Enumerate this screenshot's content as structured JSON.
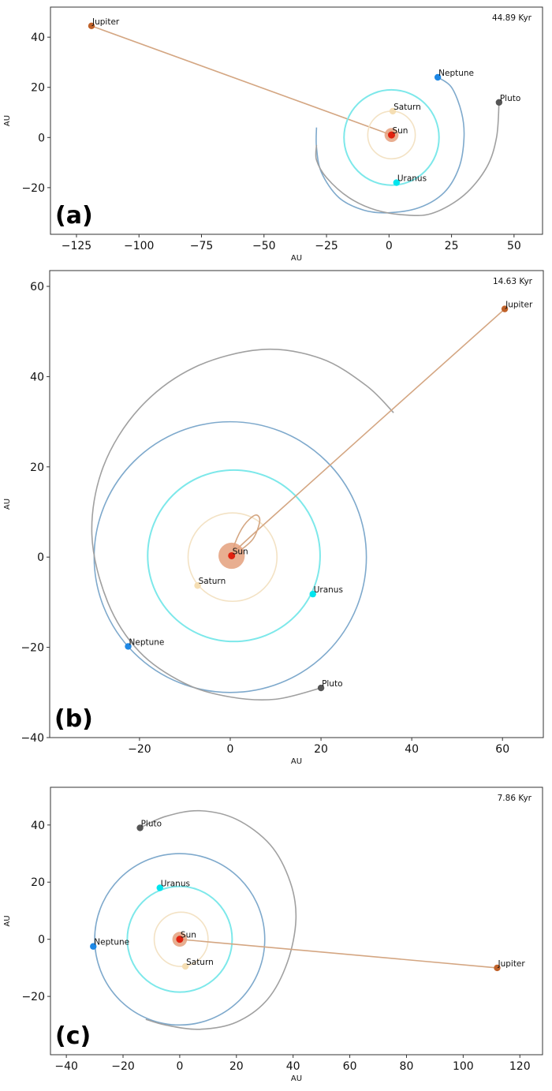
{
  "chart_data": [
    {
      "type": "scatter",
      "panel_label": "(a)",
      "time_label": "44.89 Kyr",
      "xlabel": "AU",
      "ylabel": "AU",
      "xlim": [
        -135.4,
        61.4
      ],
      "ylim": [
        -38.6,
        52
      ],
      "xticks": [
        -125,
        -100,
        -75,
        -50,
        -25,
        0,
        25,
        50
      ],
      "xtick_labels": [
        "−125",
        "−100",
        "−75",
        "−50",
        "−25",
        "0",
        "25",
        "50"
      ],
      "yticks": [
        40,
        20,
        0,
        -20
      ],
      "ytick_labels": [
        "40",
        "20",
        "0",
        "−20"
      ],
      "bodies": [
        {
          "name": "Sun",
          "x": 1,
          "y": 1,
          "color": "#e0210f"
        },
        {
          "name": "Jupiter",
          "x": -119,
          "y": 44.5,
          "color": "#c0622a"
        },
        {
          "name": "Saturn",
          "x": 1.5,
          "y": 10.5,
          "color": "#f5deb3"
        },
        {
          "name": "Uranus",
          "x": 3,
          "y": -18,
          "color": "#00e5ee"
        },
        {
          "name": "Neptune",
          "x": 19.5,
          "y": 24,
          "color": "#1e88e5"
        },
        {
          "name": "Pluto",
          "x": 44,
          "y": 14,
          "color": "#555555"
        }
      ],
      "trails": [
        {
          "body": "Jupiter",
          "color": "#d4a682",
          "points": [
            [
              -119,
              44.5
            ],
            [
              1,
              1
            ]
          ]
        },
        {
          "body": "Saturn",
          "color": "#f3e2c4",
          "circle": [
            1,
            1,
            9.5
          ]
        },
        {
          "body": "Uranus",
          "color": "#7de8ea",
          "circle": [
            1,
            0,
            19
          ]
        },
        {
          "body": "Neptune",
          "color": "#7ea9cc",
          "points": [
            [
              19.5,
              24
            ],
            [
              25,
              20
            ],
            [
              29,
              10
            ],
            [
              30,
              0
            ],
            [
              28,
              -12
            ],
            [
              22,
              -22
            ],
            [
              12,
              -28
            ],
            [
              0,
              -30
            ],
            [
              -10,
              -29
            ],
            [
              -20,
              -24
            ],
            [
              -27,
              -14
            ],
            [
              -29,
              -4
            ],
            [
              -29,
              4
            ]
          ]
        },
        {
          "body": "Pluto",
          "color": "#a0a0a0",
          "points": [
            [
              44,
              14
            ],
            [
              43,
              0
            ],
            [
              39,
              -12
            ],
            [
              30,
              -23
            ],
            [
              18,
              -30
            ],
            [
              8,
              -31
            ],
            [
              -5,
              -29
            ],
            [
              -16,
              -24
            ],
            [
              -25,
              -16
            ],
            [
              -29,
              -9
            ],
            [
              -29,
              -3
            ]
          ]
        }
      ],
      "sun_glow_radius": 2.8
    },
    {
      "type": "scatter",
      "panel_label": "(b)",
      "time_label": "14.63 Kyr",
      "xlabel": "AU",
      "ylabel": "AU",
      "xlim": [
        -39.8,
        69
      ],
      "ylim": [
        -40,
        63.5
      ],
      "xticks": [
        -20,
        0,
        20,
        40,
        60
      ],
      "xtick_labels": [
        "−20",
        "0",
        "20",
        "40",
        "60"
      ],
      "yticks": [
        60,
        40,
        20,
        0,
        -20,
        -40
      ],
      "ytick_labels": [
        "60",
        "40",
        "20",
        "0",
        "−20",
        "−40"
      ],
      "bodies": [
        {
          "name": "Sun",
          "x": 0.3,
          "y": 0.3,
          "color": "#e0210f"
        },
        {
          "name": "Jupiter",
          "x": 60.5,
          "y": 55,
          "color": "#c0622a"
        },
        {
          "name": "Saturn",
          "x": -7.2,
          "y": -6.3,
          "color": "#f5deb3"
        },
        {
          "name": "Uranus",
          "x": 18.2,
          "y": -8.2,
          "color": "#00e5ee"
        },
        {
          "name": "Neptune",
          "x": -22.5,
          "y": -19.8,
          "color": "#1e88e5"
        },
        {
          "name": "Pluto",
          "x": 20,
          "y": -29,
          "color": "#555555"
        }
      ],
      "trails": [
        {
          "body": "Saturn",
          "color": "#f3e2c4",
          "circle": [
            0.5,
            0,
            9.8
          ]
        },
        {
          "body": "Uranus",
          "color": "#7de8ea",
          "circle": [
            0.8,
            0.3,
            19
          ]
        },
        {
          "body": "Neptune",
          "color": "#7ea9cc",
          "circle": [
            0,
            0,
            30
          ]
        },
        {
          "body": "Pluto",
          "color": "#a0a0a0",
          "points": [
            [
              20,
              -29
            ],
            [
              10,
              -31.5
            ],
            [
              0,
              -31
            ],
            [
              -10,
              -28
            ],
            [
              -20,
              -21
            ],
            [
              -27,
              -10
            ],
            [
              -30.5,
              5
            ],
            [
              -28,
              20
            ],
            [
              -20,
              33
            ],
            [
              -8,
              42
            ],
            [
              7,
              46
            ],
            [
              20,
              44
            ],
            [
              30,
              38
            ],
            [
              36,
              32
            ]
          ]
        },
        {
          "body": "Jupiter",
          "color": "#d4a682",
          "points": [
            [
              0.5,
              0.5
            ],
            [
              1,
              3
            ],
            [
              3,
              7
            ],
            [
              5.5,
              9.3
            ],
            [
              6.5,
              8
            ],
            [
              5,
              4
            ],
            [
              2,
              1.5
            ],
            [
              5.5,
              5.5
            ],
            [
              60.5,
              55
            ]
          ]
        }
      ],
      "sun_glow_radius": 2.9
    },
    {
      "type": "scatter",
      "panel_label": "(c)",
      "time_label": "7.86 Kyr",
      "xlabel": "AU",
      "ylabel": "AU",
      "xlim": [
        -45.6,
        128
      ],
      "ylim": [
        -40.4,
        53.2
      ],
      "xticks": [
        -40,
        -20,
        0,
        20,
        40,
        60,
        80,
        100,
        120
      ],
      "xtick_labels": [
        "−40",
        "−20",
        "0",
        "20",
        "40",
        "60",
        "80",
        "100",
        "120"
      ],
      "yticks": [
        40,
        20,
        0,
        -20
      ],
      "ytick_labels": [
        "40",
        "20",
        "0",
        "−20"
      ],
      "bodies": [
        {
          "name": "Sun",
          "x": 0,
          "y": 0,
          "color": "#e0210f"
        },
        {
          "name": "Jupiter",
          "x": 112,
          "y": -10,
          "color": "#c0622a"
        },
        {
          "name": "Saturn",
          "x": 2,
          "y": -9.5,
          "color": "#f5deb3"
        },
        {
          "name": "Uranus",
          "x": -7,
          "y": 18,
          "color": "#00e5ee"
        },
        {
          "name": "Neptune",
          "x": -30.5,
          "y": -2.5,
          "color": "#1e88e5"
        },
        {
          "name": "Pluto",
          "x": -14,
          "y": 39,
          "color": "#555555"
        }
      ],
      "trails": [
        {
          "body": "Saturn",
          "color": "#f3e2c4",
          "circle": [
            0.5,
            0,
            9.5
          ]
        },
        {
          "body": "Uranus",
          "color": "#7de8ea",
          "circle": [
            0,
            0,
            18.5
          ]
        },
        {
          "body": "Neptune",
          "color": "#7ea9cc",
          "circle": [
            0,
            0,
            30
          ]
        },
        {
          "body": "Pluto",
          "color": "#a0a0a0",
          "points": [
            [
              -14,
              39
            ],
            [
              -5,
              43
            ],
            [
              7,
              45
            ],
            [
              20,
              42
            ],
            [
              32,
              33
            ],
            [
              39,
              20
            ],
            [
              41,
              7
            ],
            [
              38,
              -8
            ],
            [
              31,
              -21
            ],
            [
              20,
              -29
            ],
            [
              7,
              -31.5
            ],
            [
              -5,
              -30
            ],
            [
              -12,
              -28
            ]
          ]
        },
        {
          "body": "Jupiter",
          "color": "#d4a682",
          "points": [
            [
              0,
              0
            ],
            [
              112,
              -10
            ]
          ]
        }
      ],
      "sun_glow_radius": 2.6
    }
  ]
}
